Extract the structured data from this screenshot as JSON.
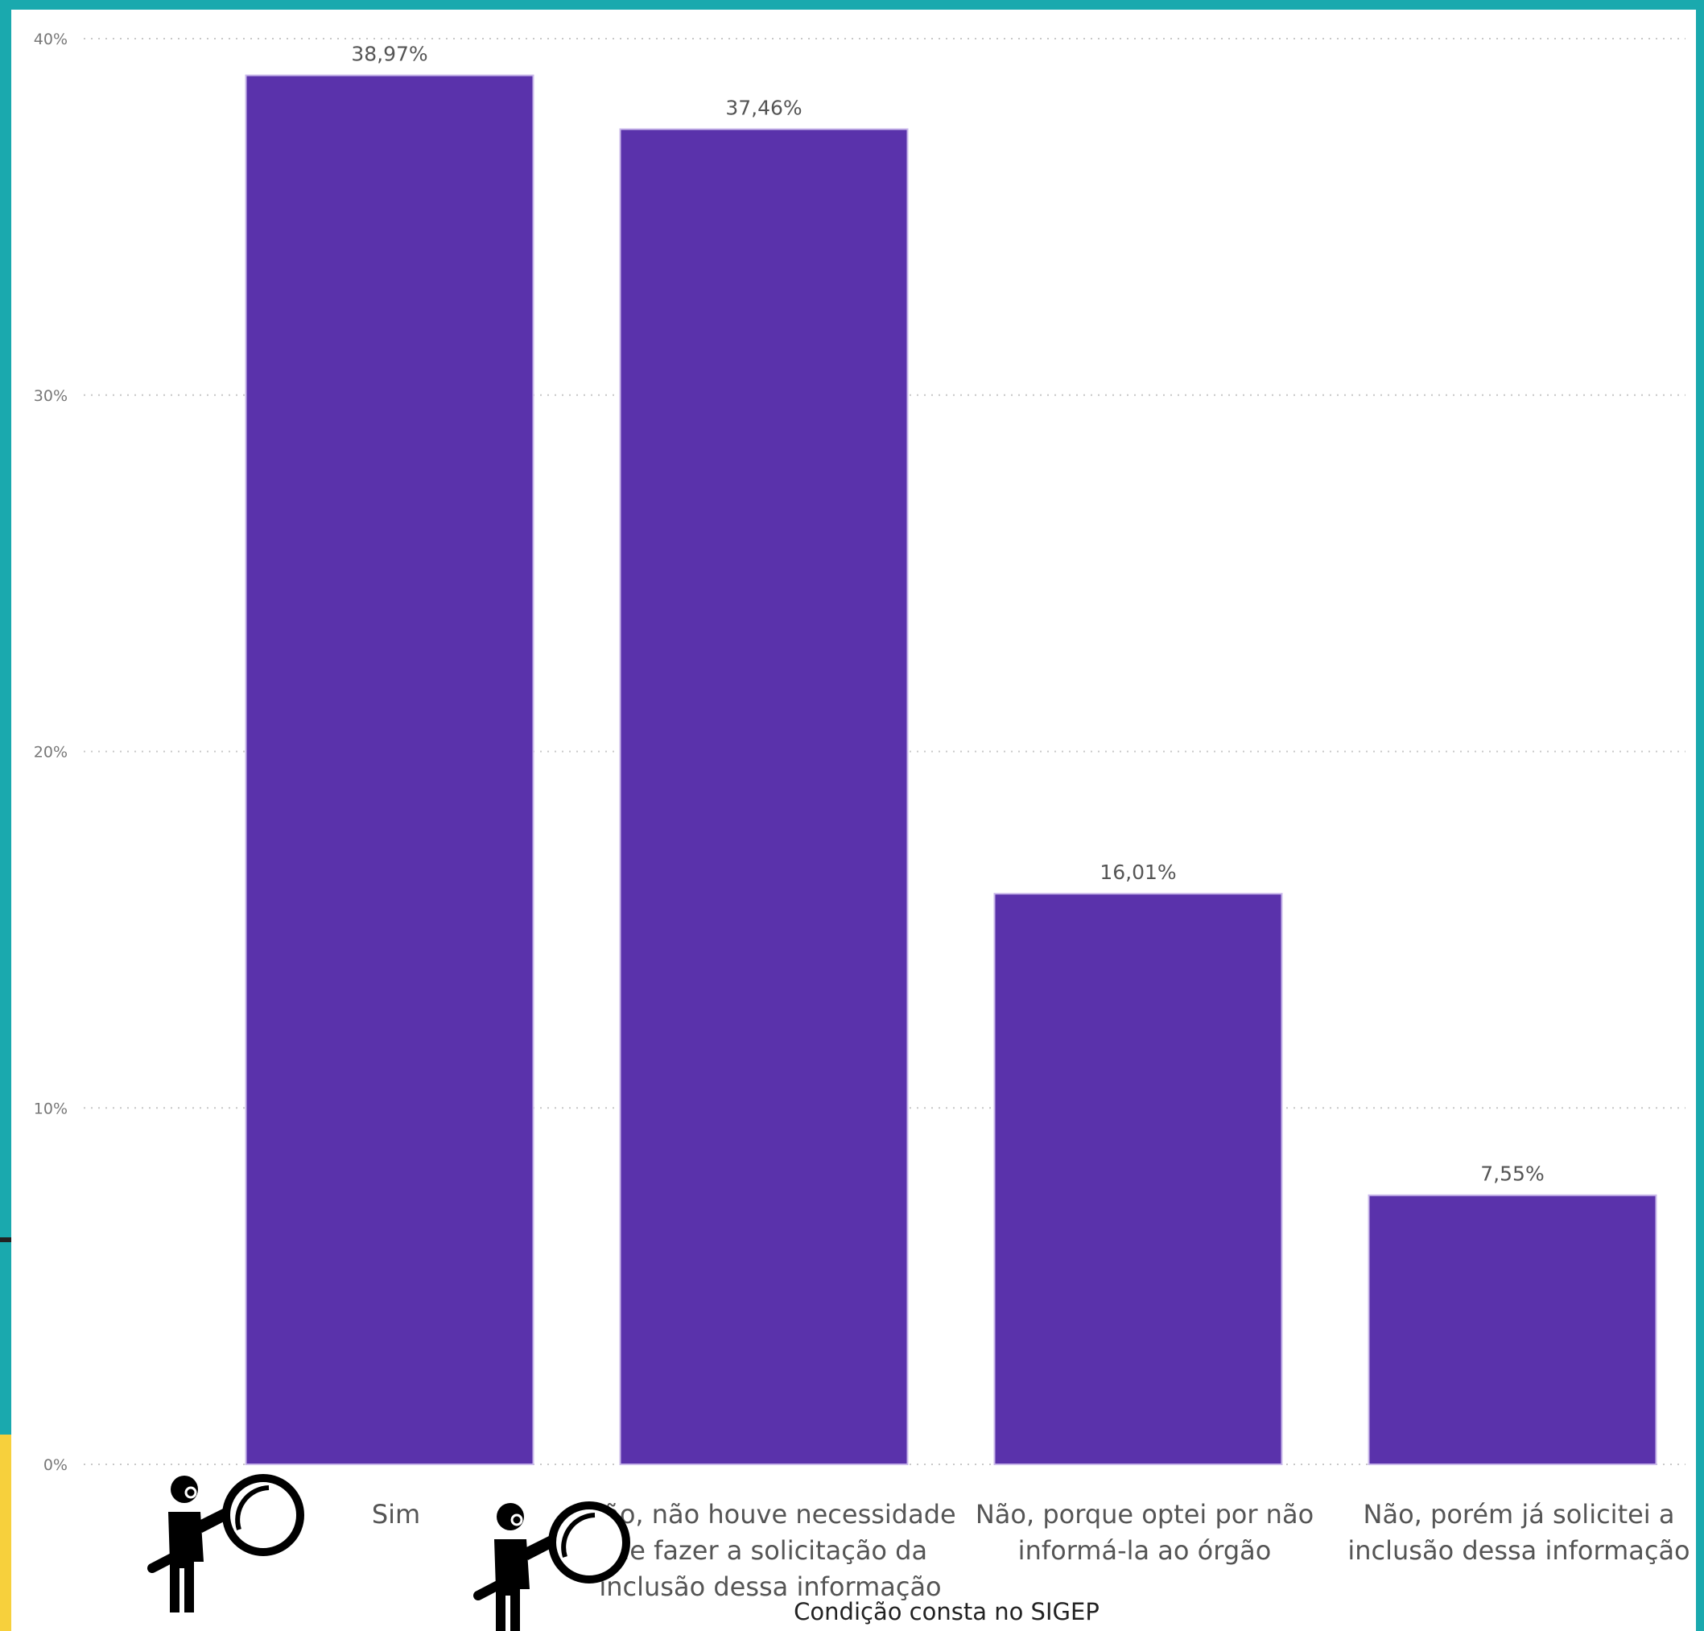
{
  "chart_data": {
    "type": "bar",
    "xlabel": "Condição consta no SIGEP",
    "ylabel": "",
    "ylim": [
      0,
      40
    ],
    "yticks": [
      {
        "value": 0,
        "label": "0%"
      },
      {
        "value": 10,
        "label": "10%"
      },
      {
        "value": 20,
        "label": "20%"
      },
      {
        "value": 30,
        "label": "30%"
      },
      {
        "value": 40,
        "label": "40%"
      }
    ],
    "grid": true,
    "color": "#5a32ab",
    "categories": [
      {
        "lines": [
          "Sim"
        ]
      },
      {
        "lines": [
          "Não, não houve necessidade",
          "de fazer a solicitação da",
          "inclusão dessa informação"
        ]
      },
      {
        "lines": [
          "Não, porque optei por não",
          "informá-la ao órgão"
        ]
      },
      {
        "lines": [
          "Não, porém já solicitei a",
          "inclusão dessa informação"
        ]
      }
    ],
    "values": [
      38.97,
      37.46,
      16.01,
      7.55
    ],
    "value_labels": [
      "38,97%",
      "37,46%",
      "16,01%",
      "7,55%"
    ]
  },
  "decorations": [
    {
      "icon": "person-magnifier-icon"
    },
    {
      "icon": "person-magnifier-icon"
    }
  ]
}
